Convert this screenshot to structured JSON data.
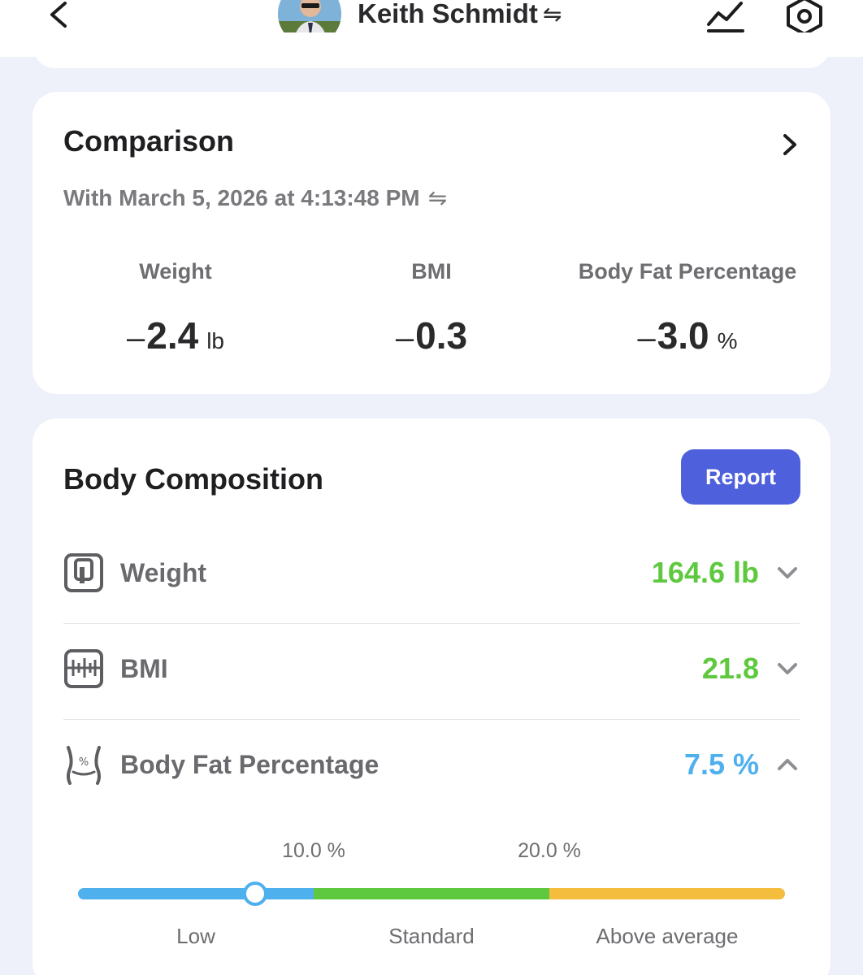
{
  "header": {
    "user_name": "Keith Schmidt",
    "swap_glyph": "⇋"
  },
  "comparison": {
    "title": "Comparison",
    "subtitle": "With March 5, 2026 at 4:13:48 PM",
    "metrics": [
      {
        "label": "Weight",
        "sign": "–",
        "value": "2.4",
        "unit": "lb"
      },
      {
        "label": "BMI",
        "sign": "–",
        "value": "0.3",
        "unit": ""
      },
      {
        "label": "Body Fat Percentage",
        "sign": "–",
        "value": "3.0",
        "unit": "%"
      }
    ]
  },
  "composition": {
    "title": "Body Composition",
    "report_label": "Report",
    "rows": [
      {
        "label": "Weight",
        "value": "164.6 lb",
        "color": "#5ec93f",
        "icon": "scale-icon"
      },
      {
        "label": "BMI",
        "value": "21.8",
        "color": "#5ec93f",
        "icon": "bmi-icon"
      },
      {
        "label": "Body Fat Percentage",
        "value": "7.5 %",
        "color": "#4fb0ee",
        "icon": "body-fat-icon"
      }
    ],
    "range": {
      "value": 7.5,
      "min": 0,
      "max": 30,
      "thresholds": [
        "10.0 %",
        "20.0 %"
      ],
      "zones": [
        "Low",
        "Standard",
        "Above average"
      ],
      "zone_colors": [
        "#4fb0ee",
        "#5ec93f",
        "#f4bd3e"
      ]
    }
  }
}
